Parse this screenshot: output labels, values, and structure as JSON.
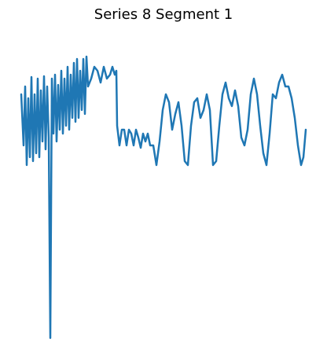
{
  "chart_data": {
    "type": "line",
    "title": "Series 8 Segment 1",
    "xlim": [
      0,
      362
    ],
    "ylim": [
      30,
      390
    ],
    "series": [
      {
        "color": "#1f77b4",
        "x": [
          0,
          3,
          5,
          7,
          9,
          11,
          13,
          15,
          17,
          19,
          21,
          23,
          25,
          27,
          29,
          31,
          33,
          35,
          37,
          39,
          41,
          43,
          45,
          47,
          49,
          51,
          53,
          55,
          57,
          59,
          61,
          63,
          65,
          67,
          69,
          71,
          73,
          75,
          77,
          79,
          81,
          83,
          85,
          89,
          93,
          97,
          101,
          105,
          109,
          113,
          116,
          119,
          121,
          122,
          125,
          128,
          131,
          134,
          137,
          140,
          143,
          146,
          149,
          152,
          155,
          158,
          161,
          164,
          168,
          172,
          176,
          180,
          184,
          188,
          192,
          196,
          200,
          204,
          208,
          212,
          216,
          220,
          224,
          228,
          232,
          236,
          240,
          244,
          248,
          252,
          256,
          260,
          264,
          268,
          272,
          276,
          280,
          284,
          288,
          292,
          296,
          300,
          304,
          308,
          312,
          316,
          320,
          324,
          328,
          332,
          336,
          340,
          344,
          348,
          352,
          356,
          359,
          362
        ],
        "values": [
          340,
          275,
          350,
          250,
          335,
          260,
          362,
          255,
          340,
          265,
          360,
          260,
          345,
          280,
          363,
          270,
          350,
          285,
          30,
          360,
          290,
          365,
          280,
          352,
          295,
          370,
          290,
          360,
          300,
          375,
          295,
          365,
          310,
          380,
          305,
          385,
          310,
          370,
          320,
          385,
          315,
          388,
          350,
          360,
          375,
          370,
          355,
          375,
          360,
          365,
          375,
          365,
          370,
          300,
          275,
          295,
          295,
          275,
          295,
          290,
          275,
          295,
          285,
          272,
          290,
          280,
          290,
          275,
          275,
          250,
          280,
          320,
          340,
          330,
          295,
          315,
          330,
          300,
          255,
          250,
          300,
          330,
          335,
          310,
          320,
          340,
          320,
          250,
          255,
          300,
          340,
          355,
          335,
          325,
          345,
          325,
          285,
          275,
          295,
          340,
          360,
          340,
          300,
          265,
          250,
          290,
          340,
          335,
          355,
          365,
          350,
          350,
          335,
          310,
          275,
          250,
          260,
          295
        ]
      }
    ]
  }
}
